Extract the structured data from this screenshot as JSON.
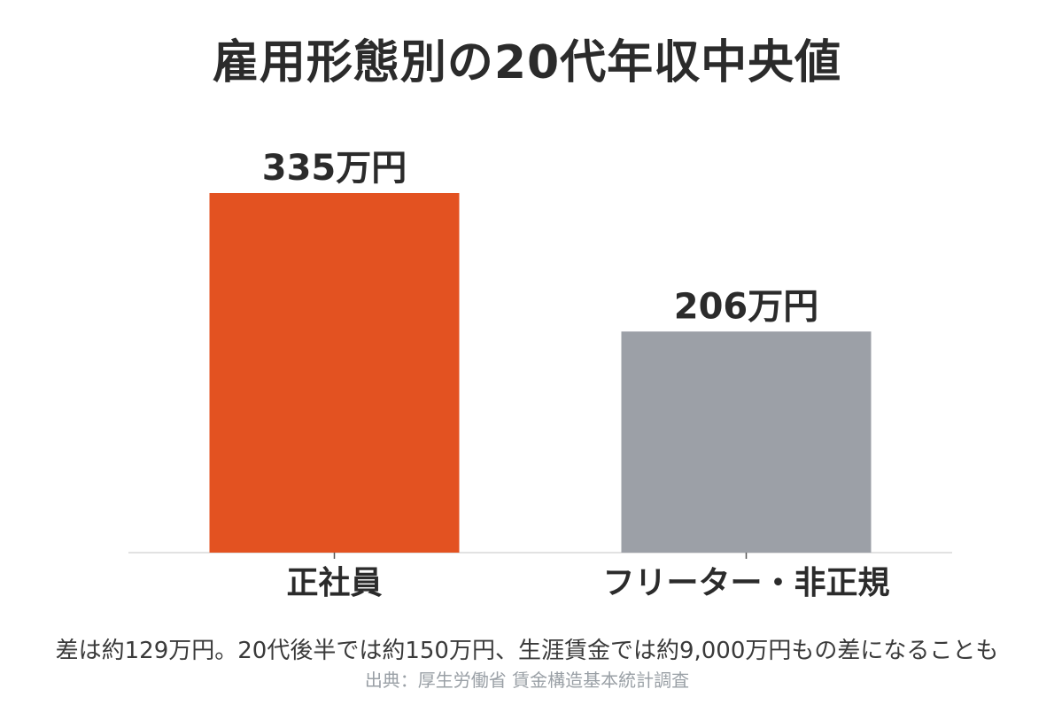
{
  "chart_data": {
    "type": "bar",
    "title": "雇用形態別の20代年収中央値",
    "categories": [
      "正社員",
      "フリーター・非正規"
    ],
    "values": [
      335,
      206
    ],
    "value_labels": [
      "335万円",
      "206万円"
    ],
    "unit": "万円",
    "colors": [
      "#e35221",
      "#9ca0a7"
    ],
    "ylim": [
      0,
      335
    ],
    "grid": false,
    "legend": "none"
  },
  "note": "差は約129万円。20代後半では約150万円、生涯賃金では約9,000万円もの差になることも",
  "source": "出典：厚生労働省 賃金構造基本統計調査"
}
